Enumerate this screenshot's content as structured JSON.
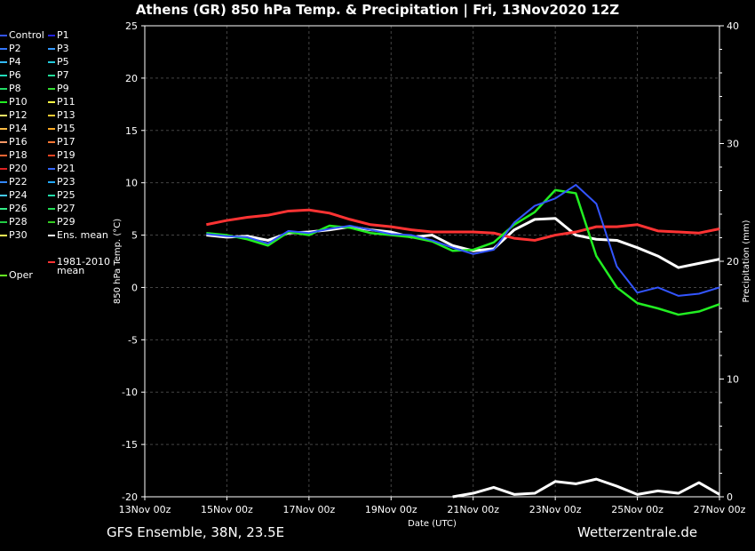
{
  "title": "Athens  (GR)  850 hPa Temp. & Precipitation | Fri, 13Nov2020 12Z",
  "footer_left": "GFS Ensemble, 38N, 23.5E",
  "footer_right": "Wetterzentrale.de",
  "legend": [
    {
      "label": "Control",
      "color": "#3355ff"
    },
    {
      "label": "P1",
      "color": "#2222dd"
    },
    {
      "label": "P2",
      "color": "#3377ff"
    },
    {
      "label": "P3",
      "color": "#3399ff"
    },
    {
      "label": "P4",
      "color": "#33bbff"
    },
    {
      "label": "P5",
      "color": "#22ccdd"
    },
    {
      "label": "P6",
      "color": "#22ddbb"
    },
    {
      "label": "P7",
      "color": "#22dd99"
    },
    {
      "label": "P8",
      "color": "#22dd66"
    },
    {
      "label": "P9",
      "color": "#33dd33"
    },
    {
      "label": "P10",
      "color": "#22ee22"
    },
    {
      "label": "P11",
      "color": "#ffff44"
    },
    {
      "label": "P12",
      "color": "#ffee66"
    },
    {
      "label": "P13",
      "color": "#ffcc33"
    },
    {
      "label": "P14",
      "color": "#ffbb44"
    },
    {
      "label": "P15",
      "color": "#ffaa22"
    },
    {
      "label": "P16",
      "color": "#ff9966"
    },
    {
      "label": "P17",
      "color": "#ff7733"
    },
    {
      "label": "P18",
      "color": "#ff6633"
    },
    {
      "label": "P19",
      "color": "#ee4422"
    },
    {
      "label": "P20",
      "color": "#dd2222"
    },
    {
      "label": "P21",
      "color": "#3366ff"
    },
    {
      "label": "P22",
      "color": "#3388ff"
    },
    {
      "label": "P23",
      "color": "#22aaff"
    },
    {
      "label": "P24",
      "color": "#44ccff"
    },
    {
      "label": "P25",
      "color": "#22ddaa"
    },
    {
      "label": "P26",
      "color": "#33ee88"
    },
    {
      "label": "P27",
      "color": "#22dd55"
    },
    {
      "label": "P28",
      "color": "#22cc44"
    },
    {
      "label": "P29",
      "color": "#33cc22"
    },
    {
      "label": "P30",
      "color": "#ffff55"
    },
    {
      "label": "Ens. mean",
      "color": "#ffffff"
    },
    {
      "label": "Oper",
      "color": "#66ff22"
    },
    {
      "label": "1981-2010\nmean",
      "color": "#ff3333"
    }
  ],
  "chart_data": {
    "type": "line",
    "xlabel": "Date (UTC)",
    "ylabel": "850 hPa Temp. (°C)",
    "y2label": "Precipitation (mm)",
    "xlim": [
      "2020-11-13 00z",
      "2020-11-27 00z"
    ],
    "xticks": [
      "13Nov 00z",
      "15Nov 00z",
      "17Nov 00z",
      "19Nov 00z",
      "21Nov 00z",
      "23Nov 00z",
      "25Nov 00z",
      "27Nov 00z"
    ],
    "ylim": [
      -20,
      25
    ],
    "yticks": [
      -20,
      -15,
      -10,
      -5,
      0,
      5,
      10,
      15,
      20,
      25
    ],
    "y2lim": [
      0,
      40
    ],
    "y2ticks": [
      0,
      10,
      20,
      30,
      40
    ],
    "grid": true,
    "temp_series": [
      {
        "name": "Ens. mean",
        "color": "#ffffff",
        "width": 3,
        "x": [
          1.5,
          2,
          2.5,
          3,
          3.5,
          4,
          4.5,
          5,
          5.5,
          6,
          6.5,
          7,
          7.5,
          8,
          8.5,
          9,
          9.5,
          10,
          10.5,
          11,
          11.5,
          12,
          12.5,
          13,
          13.5,
          14
        ],
        "y": [
          5.0,
          4.8,
          4.9,
          4.5,
          5.2,
          5.3,
          5.5,
          5.8,
          5.5,
          5.3,
          4.8,
          5.0,
          4.0,
          3.5,
          3.7,
          5.5,
          6.5,
          6.6,
          5.0,
          4.6,
          4.5,
          3.8,
          3.0,
          1.9,
          2.3,
          2.7
        ]
      },
      {
        "name": "1981-2010 mean",
        "color": "#ff3333",
        "width": 3,
        "x": [
          1.5,
          2,
          2.5,
          3,
          3.5,
          4,
          4.5,
          5,
          5.5,
          6,
          6.5,
          7,
          7.5,
          8,
          8.5,
          9,
          9.5,
          10,
          10.5,
          11,
          11.5,
          12,
          12.5,
          13,
          13.5,
          14
        ],
        "y": [
          6.0,
          6.4,
          6.7,
          6.9,
          7.3,
          7.4,
          7.1,
          6.5,
          6.0,
          5.8,
          5.5,
          5.3,
          5.3,
          5.3,
          5.2,
          4.7,
          4.5,
          5.0,
          5.3,
          5.8,
          5.8,
          6.0,
          5.4,
          5.3,
          5.2,
          5.6
        ]
      },
      {
        "name": "Oper",
        "color": "#22ee22",
        "width": 2.5,
        "x": [
          1.5,
          2,
          2.5,
          3,
          3.5,
          4,
          4.5,
          5,
          5.5,
          6,
          6.5,
          7,
          7.5,
          8,
          8.5,
          9,
          9.5,
          10,
          10.5,
          11,
          11.5,
          12,
          12.5,
          13,
          13.5,
          14
        ],
        "y": [
          5.2,
          5.0,
          4.6,
          4.0,
          5.3,
          5.0,
          5.9,
          5.7,
          5.2,
          5.0,
          4.8,
          4.4,
          3.5,
          3.6,
          4.3,
          6.0,
          7.2,
          9.3,
          9.0,
          3.0,
          0.0,
          -1.5,
          -2.0,
          -2.6,
          -2.3,
          -1.6
        ]
      },
      {
        "name": "Control",
        "color": "#3355ff",
        "width": 2,
        "x": [
          1.5,
          2,
          2.5,
          3,
          3.5,
          4,
          4.5,
          5,
          5.5,
          6,
          6.5,
          7,
          7.5,
          8,
          8.5,
          9,
          9.5,
          10,
          10.5,
          11,
          11.5,
          12,
          12.5,
          13,
          13.5,
          14
        ],
        "y": [
          5.1,
          4.9,
          4.8,
          4.2,
          5.4,
          5.2,
          5.6,
          5.9,
          5.5,
          5.1,
          5.0,
          4.5,
          3.8,
          3.2,
          3.6,
          6.2,
          7.8,
          8.5,
          9.8,
          8.0,
          2.0,
          -0.5,
          0.0,
          -0.8,
          -0.6,
          0.0
        ]
      }
    ],
    "precip_series": [
      {
        "name": "Ens. mean",
        "color": "#ffffff",
        "width": 3,
        "x": [
          7.5,
          8,
          8.5,
          9,
          9.5,
          10,
          10.5,
          11,
          11.5,
          12,
          12.5,
          13,
          13.5,
          14
        ],
        "y": [
          0,
          0.3,
          0.8,
          0.2,
          0.3,
          1.3,
          1.1,
          1.5,
          0.9,
          0.2,
          0.5,
          0.3,
          1.2,
          0.2
        ]
      }
    ]
  }
}
